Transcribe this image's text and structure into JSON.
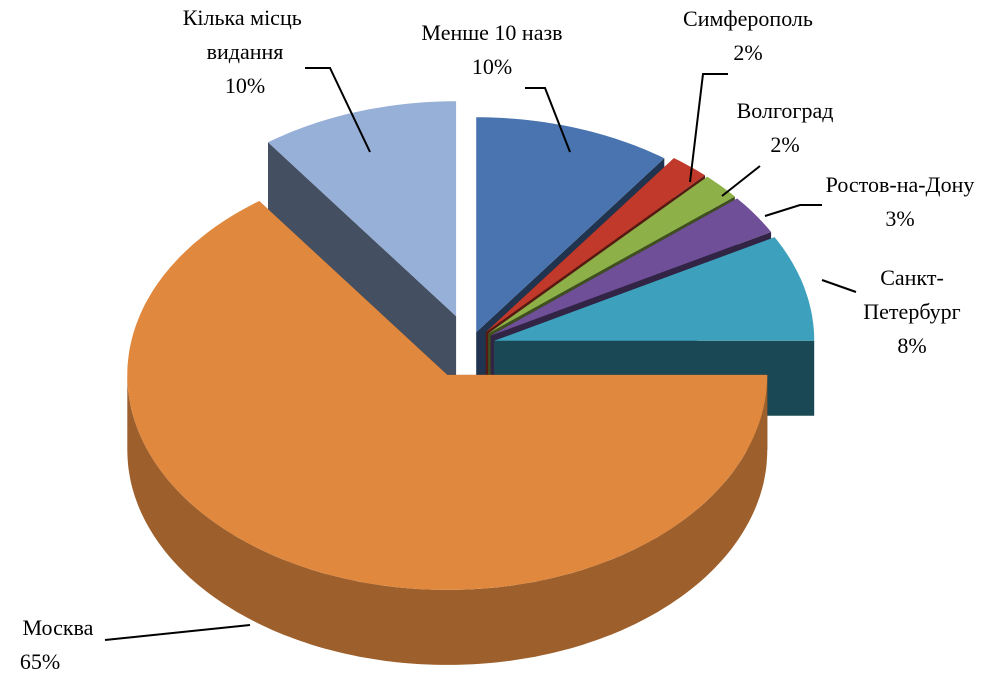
{
  "chart_data": {
    "type": "pie3d",
    "categories": [
      "Менше 10 назв",
      "Симферополь",
      "Волгоград",
      "Ростов-на-Дону",
      "Санкт-Петербург",
      "Москва",
      "Кілька місць видання"
    ],
    "values": [
      10,
      2,
      2,
      3,
      8,
      65,
      10
    ],
    "value_labels": [
      "10%",
      "2%",
      "2%",
      "3%",
      "8%",
      "65%",
      "10%"
    ],
    "colors": [
      "#4a74b0",
      "#c0392b",
      "#8db048",
      "#6e4f98",
      "#3da0bd",
      "#e0883e",
      "#97b0d8"
    ]
  }
}
